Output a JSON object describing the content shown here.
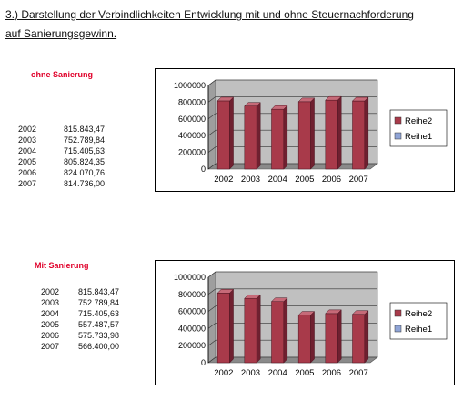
{
  "heading": {
    "line1": "3.) Darstellung der Verbindlichkeiten Entwicklung mit und ohne Steuernachforderung",
    "line2": "auf Sanierungsgewinn."
  },
  "colors": {
    "section_label": "#e0002a",
    "bar": "#a83a4a",
    "bar_side": "#6f2030",
    "bar_top": "#c66a78",
    "plot_wall": "#c0c0c0",
    "plot_floor": "#8a8a8a",
    "legend_reihe2": "#a83a4a",
    "legend_reihe1": "#8fa4d6"
  },
  "sections": [
    {
      "label": "ohne Sanierung",
      "rows": [
        {
          "year": "2002",
          "value": "815.843,47"
        },
        {
          "year": "2003",
          "value": "752.789,84"
        },
        {
          "year": "2004",
          "value": "715.405,63"
        },
        {
          "year": "2005",
          "value": "805.824,35"
        },
        {
          "year": "2006",
          "value": "824.070,76"
        },
        {
          "year": "2007",
          "value": "814.736,00"
        }
      ]
    },
    {
      "label": "Mit Sanierung",
      "rows": [
        {
          "year": "2002",
          "value": "815.843,47"
        },
        {
          "year": "2003",
          "value": "752.789,84"
        },
        {
          "year": "2004",
          "value": "715.405,63"
        },
        {
          "year": "2005",
          "value": "557.487,57"
        },
        {
          "year": "2006",
          "value": "575.733,98"
        },
        {
          "year": "2007",
          "value": "566.400,00"
        }
      ]
    }
  ],
  "chart_data": [
    {
      "type": "bar",
      "categories": [
        "2002",
        "2003",
        "2004",
        "2005",
        "2006",
        "2007"
      ],
      "series": [
        {
          "name": "Reihe2",
          "values": [
            815843.47,
            752789.84,
            715405.63,
            805824.35,
            824070.76,
            814736.0
          ]
        }
      ],
      "legend": [
        "Reihe2",
        "Reihe1"
      ],
      "legend_position": "right",
      "yticks": [
        "0",
        "200000",
        "400000",
        "600000",
        "800000",
        "1000000"
      ],
      "ylim": [
        0,
        1000000
      ],
      "grid": true,
      "style": "3d-bar"
    },
    {
      "type": "bar",
      "categories": [
        "2002",
        "2003",
        "2004",
        "2005",
        "2006",
        "2007"
      ],
      "series": [
        {
          "name": "Reihe2",
          "values": [
            815843.47,
            752789.84,
            715405.63,
            557487.57,
            575733.98,
            566400.0
          ]
        }
      ],
      "legend": [
        "Reihe2",
        "Reihe1"
      ],
      "legend_position": "right",
      "yticks": [
        "0",
        "200000",
        "400000",
        "600000",
        "800000",
        "1000000"
      ],
      "ylim": [
        0,
        1000000
      ],
      "grid": true,
      "style": "3d-bar"
    }
  ]
}
